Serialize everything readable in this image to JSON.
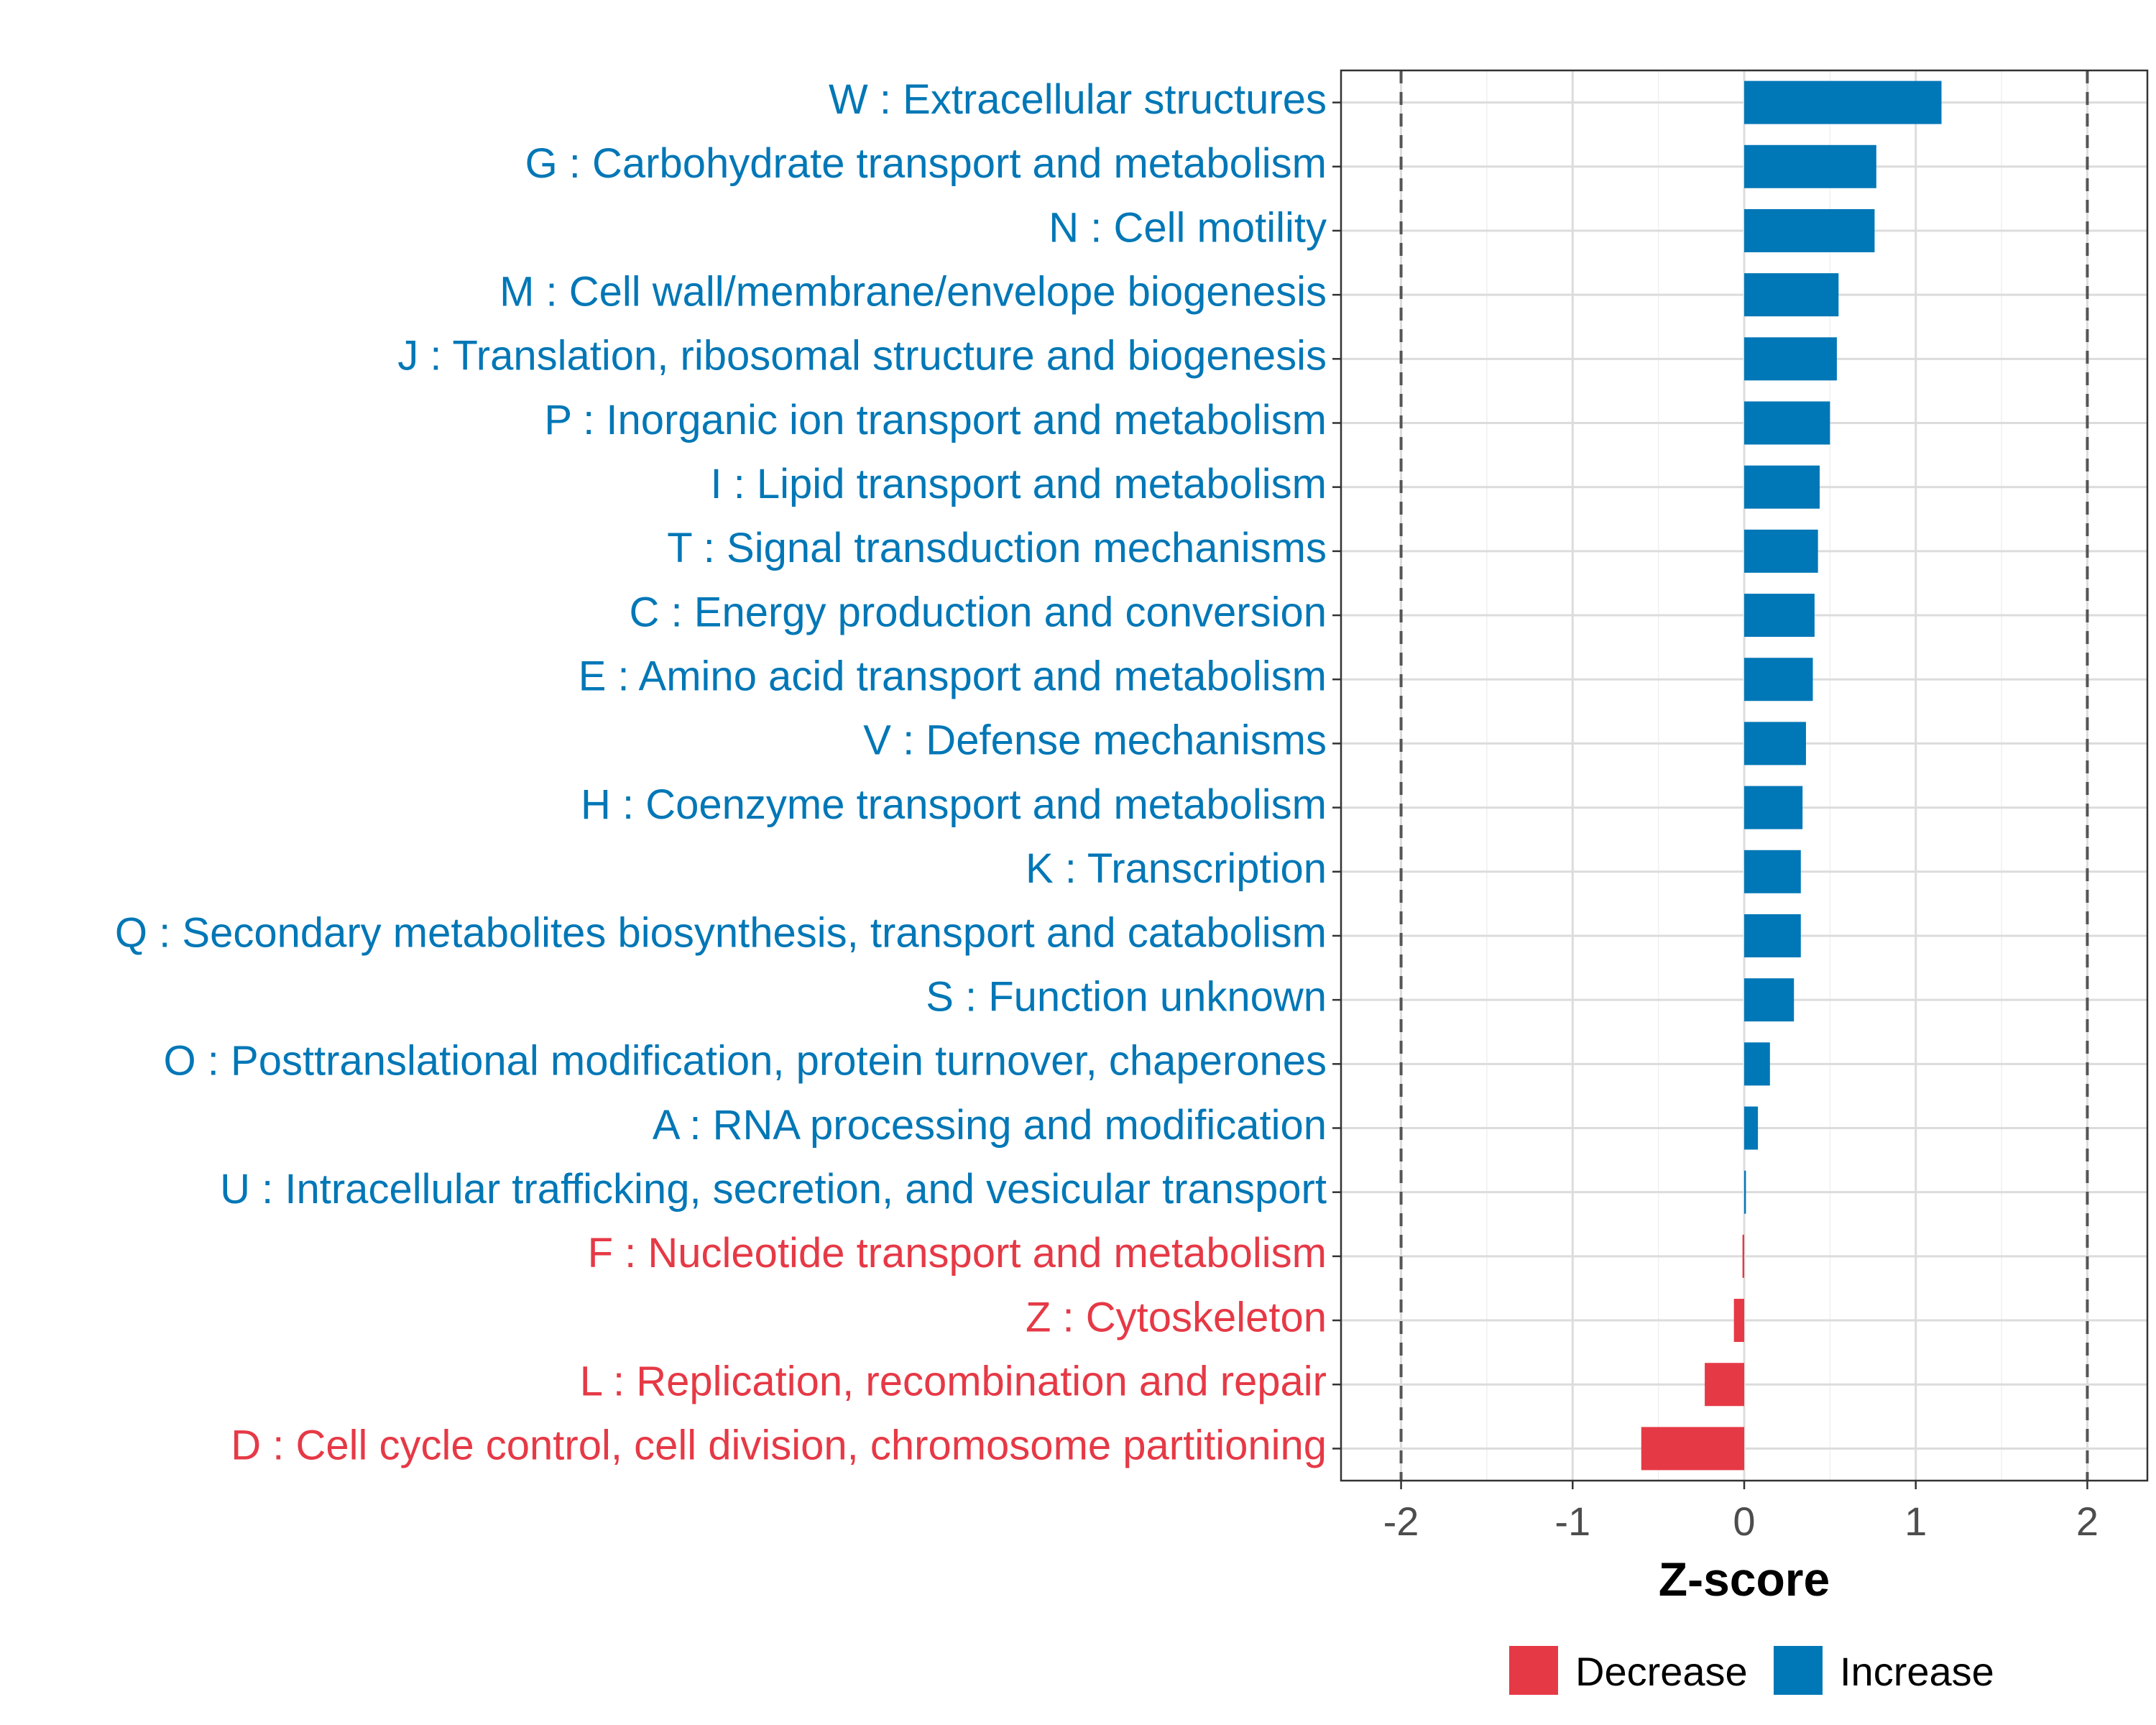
{
  "chart_data": {
    "type": "bar",
    "orientation": "horizontal",
    "xlabel": "Z-score",
    "xlim": [
      -2.35,
      2.35
    ],
    "xticks": [
      -2,
      -1,
      0,
      1,
      2
    ],
    "xtick_labels": [
      "-2",
      "-1",
      "0",
      "1",
      "2"
    ],
    "reference_lines": [
      -2,
      2
    ],
    "grid": true,
    "legend_position": "bottom",
    "legend": [
      {
        "name": "Decrease",
        "color": "#E63946"
      },
      {
        "name": "Increase",
        "color": "#0077B6"
      }
    ],
    "categories": [
      "W : Extracellular structures",
      "G : Carbohydrate transport and metabolism",
      "N : Cell motility",
      "M : Cell wall/membrane/envelope biogenesis",
      "J : Translation, ribosomal structure and biogenesis",
      "P : Inorganic ion transport and metabolism",
      "I : Lipid transport and metabolism",
      "T : Signal transduction mechanisms",
      "C : Energy production and conversion",
      "E : Amino acid transport and metabolism",
      "V : Defense mechanisms",
      "H : Coenzyme transport and metabolism",
      "K : Transcription",
      "Q : Secondary metabolites biosynthesis, transport and catabolism",
      "S : Function unknown",
      "O : Posttranslational modification, protein turnover, chaperones",
      "A : RNA processing and modification",
      "U : Intracellular trafficking, secretion, and vesicular transport",
      "F : Nucleotide transport and metabolism",
      "Z : Cytoskeleton",
      "L : Replication, recombination and repair",
      "D : Cell cycle control, cell division, chromosome partitioning"
    ],
    "values": [
      1.15,
      0.77,
      0.76,
      0.55,
      0.54,
      0.5,
      0.44,
      0.43,
      0.41,
      0.4,
      0.36,
      0.34,
      0.33,
      0.33,
      0.29,
      0.15,
      0.08,
      0.01,
      -0.01,
      -0.06,
      -0.23,
      -0.6
    ]
  }
}
